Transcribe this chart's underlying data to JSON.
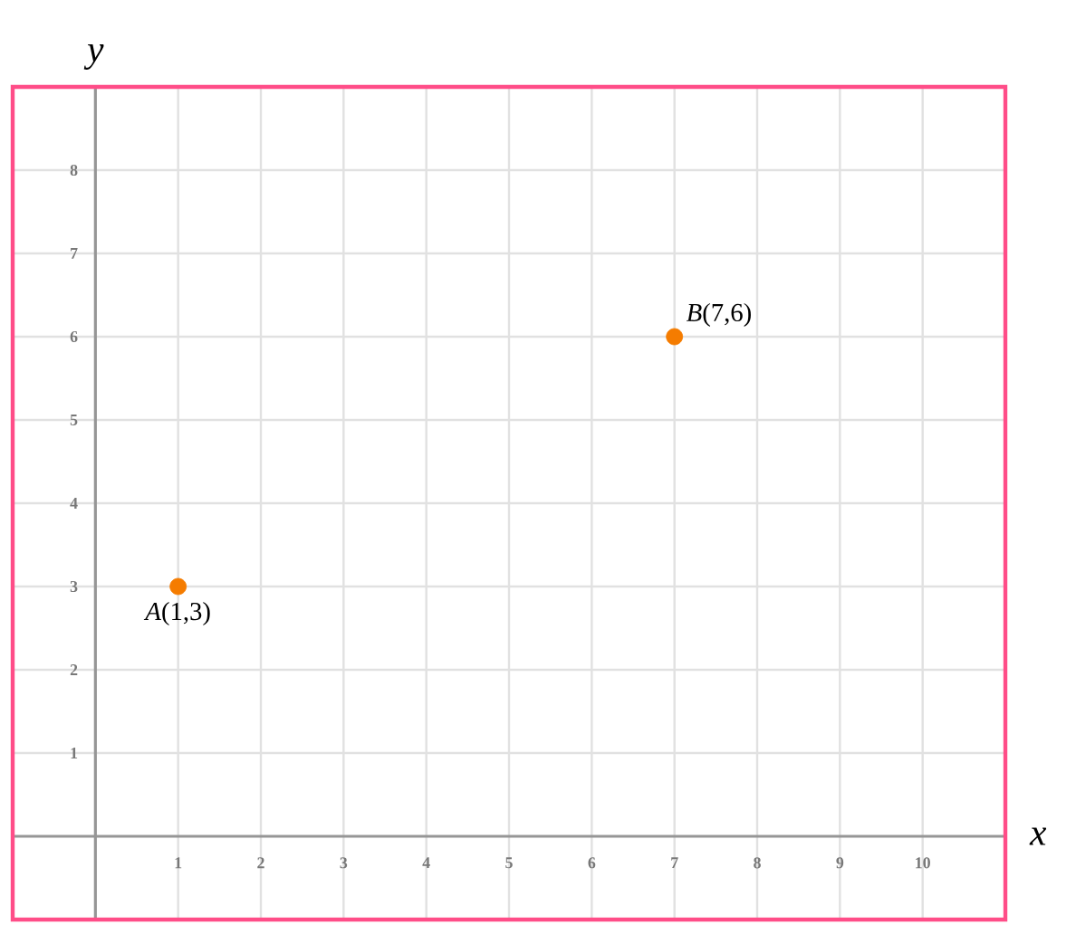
{
  "chart_data": {
    "type": "scatter",
    "xlabel": "x",
    "ylabel": "y",
    "series": [
      {
        "color": "#f57c00",
        "x": [
          1,
          7
        ],
        "values": [
          3,
          6
        ]
      }
    ],
    "xlim": [
      -1,
      11
    ],
    "ylim": [
      -1,
      9
    ],
    "xticks": [
      1,
      2,
      3,
      4,
      5,
      6,
      7,
      8,
      9,
      10
    ],
    "yticks": [
      1,
      2,
      3,
      4,
      5,
      6,
      7,
      8
    ],
    "grid": true,
    "annotations": [
      {
        "text": "*A*(1,3)",
        "x": 1,
        "y": 3
      },
      {
        "text": "*B*(7,6)",
        "x": 7,
        "y": 6
      }
    ]
  }
}
